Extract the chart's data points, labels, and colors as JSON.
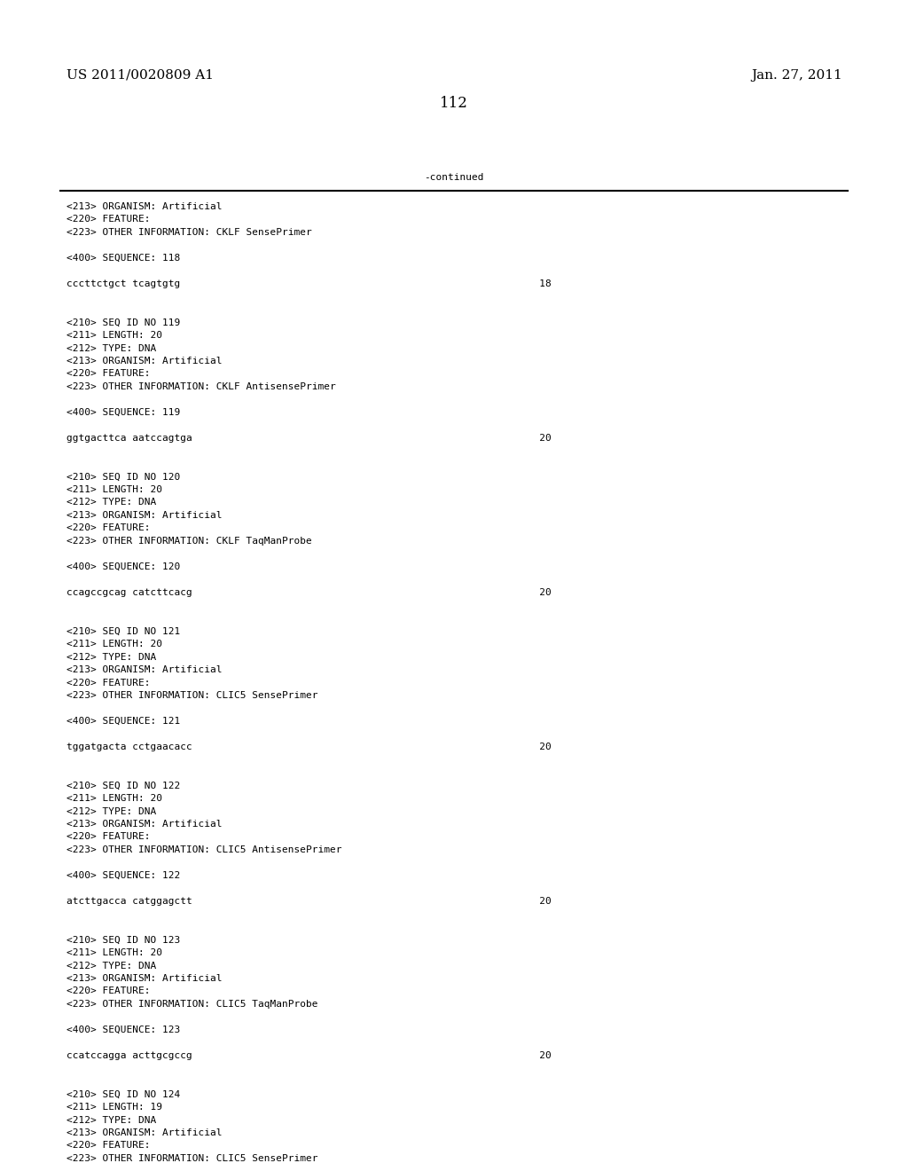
{
  "background_color": "#ffffff",
  "header_left": "US 2011/0020809 A1",
  "header_right": "Jan. 27, 2011",
  "page_number": "112",
  "continued_label": "-continued",
  "font_size_header": 11,
  "font_size_body": 8.0,
  "font_size_page": 12,
  "mono_font": "DejaVu Sans Mono",
  "serif_font": "DejaVu Serif",
  "content_lines": [
    "<213> ORGANISM: Artificial",
    "<220> FEATURE:",
    "<223> OTHER INFORMATION: CKLF SensePrimer",
    "",
    "<400> SEQUENCE: 118",
    "",
    "cccttctgct tcagtgtg                                                            18",
    "",
    "",
    "<210> SEQ ID NO 119",
    "<211> LENGTH: 20",
    "<212> TYPE: DNA",
    "<213> ORGANISM: Artificial",
    "<220> FEATURE:",
    "<223> OTHER INFORMATION: CKLF AntisensePrimer",
    "",
    "<400> SEQUENCE: 119",
    "",
    "ggtgacttca aatccagtga                                                          20",
    "",
    "",
    "<210> SEQ ID NO 120",
    "<211> LENGTH: 20",
    "<212> TYPE: DNA",
    "<213> ORGANISM: Artificial",
    "<220> FEATURE:",
    "<223> OTHER INFORMATION: CKLF TaqManProbe",
    "",
    "<400> SEQUENCE: 120",
    "",
    "ccagccgcag catcttcacg                                                          20",
    "",
    "",
    "<210> SEQ ID NO 121",
    "<211> LENGTH: 20",
    "<212> TYPE: DNA",
    "<213> ORGANISM: Artificial",
    "<220> FEATURE:",
    "<223> OTHER INFORMATION: CLIC5 SensePrimer",
    "",
    "<400> SEQUENCE: 121",
    "",
    "tggatgacta cctgaacacc                                                          20",
    "",
    "",
    "<210> SEQ ID NO 122",
    "<211> LENGTH: 20",
    "<212> TYPE: DNA",
    "<213> ORGANISM: Artificial",
    "<220> FEATURE:",
    "<223> OTHER INFORMATION: CLIC5 AntisensePrimer",
    "",
    "<400> SEQUENCE: 122",
    "",
    "atcttgacca catggagctt                                                          20",
    "",
    "",
    "<210> SEQ ID NO 123",
    "<211> LENGTH: 20",
    "<212> TYPE: DNA",
    "<213> ORGANISM: Artificial",
    "<220> FEATURE:",
    "<223> OTHER INFORMATION: CLIC5 TaqManProbe",
    "",
    "<400> SEQUENCE: 123",
    "",
    "ccatccagga acttgcgccg                                                          20",
    "",
    "",
    "<210> SEQ ID NO 124",
    "<211> LENGTH: 19",
    "<212> TYPE: DNA",
    "<213> ORGANISM: Artificial",
    "<220> FEATURE:",
    "<223> OTHER INFORMATION: CLIC5 SensePrimer"
  ]
}
